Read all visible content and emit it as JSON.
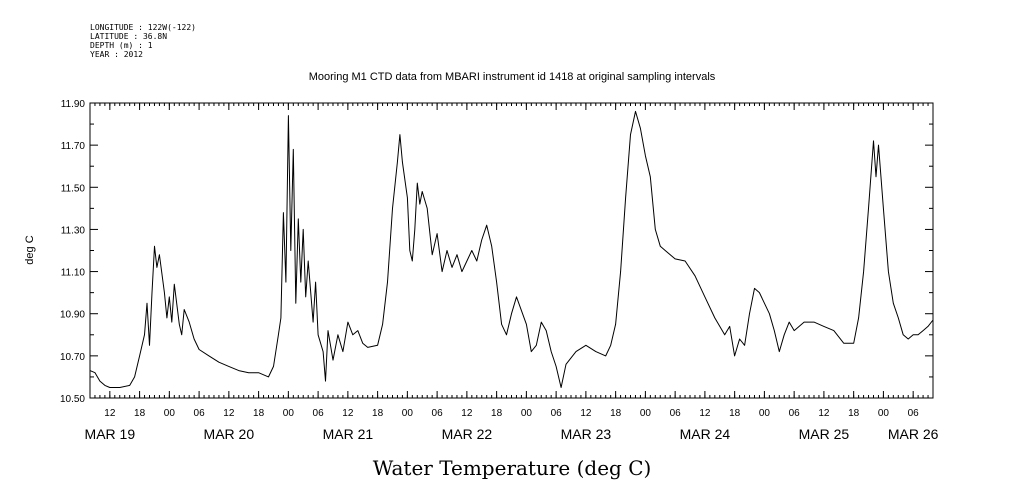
{
  "header": {
    "lines": [
      "LONGITUDE : 122W(-122)",
      "LATITUDE : 36.8N",
      "DEPTH (m) : 1",
      "YEAR : 2012"
    ]
  },
  "chart_data": {
    "type": "line",
    "title": "Mooring M1 CTD data from MBARI instrument id 1418 at original sampling intervals",
    "xlabel": "Water Temperature (deg C)",
    "ylabel": "deg C",
    "ylim": [
      10.5,
      11.9
    ],
    "xlim": [
      "2012-03-19T08:00",
      "2012-03-26T10:00"
    ],
    "y_ticks": [
      "10.50",
      "10.70",
      "10.90",
      "11.10",
      "11.30",
      "11.50",
      "11.70",
      "11.90"
    ],
    "x_hour_ticks": [
      {
        "t": "2012-03-19T12:00",
        "label": "12"
      },
      {
        "t": "2012-03-19T18:00",
        "label": "18"
      },
      {
        "t": "2012-03-20T00:00",
        "label": "00"
      },
      {
        "t": "2012-03-20T06:00",
        "label": "06"
      },
      {
        "t": "2012-03-20T12:00",
        "label": "12"
      },
      {
        "t": "2012-03-20T18:00",
        "label": "18"
      },
      {
        "t": "2012-03-21T00:00",
        "label": "00"
      },
      {
        "t": "2012-03-21T06:00",
        "label": "06"
      },
      {
        "t": "2012-03-21T12:00",
        "label": "12"
      },
      {
        "t": "2012-03-21T18:00",
        "label": "18"
      },
      {
        "t": "2012-03-22T00:00",
        "label": "00"
      },
      {
        "t": "2012-03-22T06:00",
        "label": "06"
      },
      {
        "t": "2012-03-22T12:00",
        "label": "12"
      },
      {
        "t": "2012-03-22T18:00",
        "label": "18"
      },
      {
        "t": "2012-03-23T00:00",
        "label": "00"
      },
      {
        "t": "2012-03-23T06:00",
        "label": "06"
      },
      {
        "t": "2012-03-23T12:00",
        "label": "12"
      },
      {
        "t": "2012-03-23T18:00",
        "label": "18"
      },
      {
        "t": "2012-03-24T00:00",
        "label": "00"
      },
      {
        "t": "2012-03-24T06:00",
        "label": "06"
      },
      {
        "t": "2012-03-24T12:00",
        "label": "12"
      },
      {
        "t": "2012-03-24T18:00",
        "label": "18"
      },
      {
        "t": "2012-03-25T00:00",
        "label": "00"
      },
      {
        "t": "2012-03-25T06:00",
        "label": "06"
      },
      {
        "t": "2012-03-25T12:00",
        "label": "12"
      },
      {
        "t": "2012-03-25T18:00",
        "label": "18"
      },
      {
        "t": "2012-03-26T00:00",
        "label": "00"
      },
      {
        "t": "2012-03-26T06:00",
        "label": "06"
      }
    ],
    "x_date_labels": [
      {
        "t": "2012-03-19T12:00",
        "label": "MAR 19"
      },
      {
        "t": "2012-03-20T12:00",
        "label": "MAR 20"
      },
      {
        "t": "2012-03-21T12:00",
        "label": "MAR 21"
      },
      {
        "t": "2012-03-22T12:00",
        "label": "MAR 22"
      },
      {
        "t": "2012-03-23T12:00",
        "label": "MAR 23"
      },
      {
        "t": "2012-03-24T12:00",
        "label": "MAR 24"
      },
      {
        "t": "2012-03-25T12:00",
        "label": "MAR 25"
      },
      {
        "t": "2012-03-26T06:00",
        "label": "MAR 26"
      }
    ],
    "grid": false,
    "line_color": "#000000",
    "series": [
      {
        "points": [
          [
            "2012-03-19T08:00",
            10.63
          ],
          [
            "2012-03-19T09:00",
            10.62
          ],
          [
            "2012-03-19T10:00",
            10.58
          ],
          [
            "2012-03-19T11:00",
            10.56
          ],
          [
            "2012-03-19T12:00",
            10.55
          ],
          [
            "2012-03-19T14:00",
            10.55
          ],
          [
            "2012-03-19T16:00",
            10.56
          ],
          [
            "2012-03-19T17:00",
            10.6
          ],
          [
            "2012-03-19T18:00",
            10.7
          ],
          [
            "2012-03-19T19:00",
            10.8
          ],
          [
            "2012-03-19T19:30",
            10.95
          ],
          [
            "2012-03-19T20:00",
            10.75
          ],
          [
            "2012-03-19T20:30",
            11.0
          ],
          [
            "2012-03-19T21:00",
            11.22
          ],
          [
            "2012-03-19T21:30",
            11.12
          ],
          [
            "2012-03-19T22:00",
            11.18
          ],
          [
            "2012-03-19T23:00",
            11.0
          ],
          [
            "2012-03-19T23:30",
            10.88
          ],
          [
            "2012-03-20T00:00",
            10.98
          ],
          [
            "2012-03-20T00:30",
            10.86
          ],
          [
            "2012-03-20T01:00",
            11.04
          ],
          [
            "2012-03-20T02:00",
            10.85
          ],
          [
            "2012-03-20T02:30",
            10.8
          ],
          [
            "2012-03-20T03:00",
            10.92
          ],
          [
            "2012-03-20T04:00",
            10.86
          ],
          [
            "2012-03-20T05:00",
            10.78
          ],
          [
            "2012-03-20T06:00",
            10.73
          ],
          [
            "2012-03-20T08:00",
            10.7
          ],
          [
            "2012-03-20T10:00",
            10.67
          ],
          [
            "2012-03-20T12:00",
            10.65
          ],
          [
            "2012-03-20T14:00",
            10.63
          ],
          [
            "2012-03-20T16:00",
            10.62
          ],
          [
            "2012-03-20T18:00",
            10.62
          ],
          [
            "2012-03-20T20:00",
            10.6
          ],
          [
            "2012-03-20T21:00",
            10.65
          ],
          [
            "2012-03-20T22:00",
            10.8
          ],
          [
            "2012-03-20T22:30",
            10.88
          ],
          [
            "2012-03-20T23:00",
            11.38
          ],
          [
            "2012-03-20T23:30",
            11.05
          ],
          [
            "2012-03-21T00:00",
            11.84
          ],
          [
            "2012-03-21T00:30",
            11.2
          ],
          [
            "2012-03-21T01:00",
            11.68
          ],
          [
            "2012-03-21T01:30",
            10.95
          ],
          [
            "2012-03-21T02:00",
            11.35
          ],
          [
            "2012-03-21T02:30",
            11.05
          ],
          [
            "2012-03-21T03:00",
            11.3
          ],
          [
            "2012-03-21T03:30",
            10.98
          ],
          [
            "2012-03-21T04:00",
            11.15
          ],
          [
            "2012-03-21T05:00",
            10.86
          ],
          [
            "2012-03-21T05:30",
            11.05
          ],
          [
            "2012-03-21T06:00",
            10.8
          ],
          [
            "2012-03-21T07:00",
            10.72
          ],
          [
            "2012-03-21T07:30",
            10.58
          ],
          [
            "2012-03-21T08:00",
            10.82
          ],
          [
            "2012-03-21T09:00",
            10.68
          ],
          [
            "2012-03-21T10:00",
            10.8
          ],
          [
            "2012-03-21T11:00",
            10.72
          ],
          [
            "2012-03-21T12:00",
            10.86
          ],
          [
            "2012-03-21T13:00",
            10.8
          ],
          [
            "2012-03-21T14:00",
            10.82
          ],
          [
            "2012-03-21T15:00",
            10.76
          ],
          [
            "2012-03-21T16:00",
            10.74
          ],
          [
            "2012-03-21T18:00",
            10.75
          ],
          [
            "2012-03-21T19:00",
            10.85
          ],
          [
            "2012-03-21T20:00",
            11.05
          ],
          [
            "2012-03-21T21:00",
            11.4
          ],
          [
            "2012-03-21T22:00",
            11.62
          ],
          [
            "2012-03-21T22:30",
            11.75
          ],
          [
            "2012-03-21T23:00",
            11.62
          ],
          [
            "2012-03-22T00:00",
            11.45
          ],
          [
            "2012-03-22T00:30",
            11.2
          ],
          [
            "2012-03-22T01:00",
            11.15
          ],
          [
            "2012-03-22T01:30",
            11.3
          ],
          [
            "2012-03-22T02:00",
            11.52
          ],
          [
            "2012-03-22T02:30",
            11.42
          ],
          [
            "2012-03-22T03:00",
            11.48
          ],
          [
            "2012-03-22T04:00",
            11.4
          ],
          [
            "2012-03-22T05:00",
            11.18
          ],
          [
            "2012-03-22T06:00",
            11.28
          ],
          [
            "2012-03-22T07:00",
            11.1
          ],
          [
            "2012-03-22T08:00",
            11.2
          ],
          [
            "2012-03-22T09:00",
            11.12
          ],
          [
            "2012-03-22T10:00",
            11.18
          ],
          [
            "2012-03-22T11:00",
            11.1
          ],
          [
            "2012-03-22T12:00",
            11.15
          ],
          [
            "2012-03-22T13:00",
            11.2
          ],
          [
            "2012-03-22T14:00",
            11.15
          ],
          [
            "2012-03-22T15:00",
            11.25
          ],
          [
            "2012-03-22T16:00",
            11.32
          ],
          [
            "2012-03-22T17:00",
            11.22
          ],
          [
            "2012-03-22T18:00",
            11.05
          ],
          [
            "2012-03-22T19:00",
            10.85
          ],
          [
            "2012-03-22T20:00",
            10.8
          ],
          [
            "2012-03-22T21:00",
            10.9
          ],
          [
            "2012-03-22T22:00",
            10.98
          ],
          [
            "2012-03-23T00:00",
            10.85
          ],
          [
            "2012-03-23T01:00",
            10.72
          ],
          [
            "2012-03-23T02:00",
            10.75
          ],
          [
            "2012-03-23T03:00",
            10.86
          ],
          [
            "2012-03-23T04:00",
            10.82
          ],
          [
            "2012-03-23T05:00",
            10.72
          ],
          [
            "2012-03-23T06:00",
            10.65
          ],
          [
            "2012-03-23T07:00",
            10.55
          ],
          [
            "2012-03-23T08:00",
            10.66
          ],
          [
            "2012-03-23T10:00",
            10.72
          ],
          [
            "2012-03-23T12:00",
            10.75
          ],
          [
            "2012-03-23T14:00",
            10.72
          ],
          [
            "2012-03-23T16:00",
            10.7
          ],
          [
            "2012-03-23T17:00",
            10.75
          ],
          [
            "2012-03-23T18:00",
            10.85
          ],
          [
            "2012-03-23T19:00",
            11.1
          ],
          [
            "2012-03-23T20:00",
            11.45
          ],
          [
            "2012-03-23T21:00",
            11.75
          ],
          [
            "2012-03-23T22:00",
            11.86
          ],
          [
            "2012-03-23T23:00",
            11.78
          ],
          [
            "2012-03-24T00:00",
            11.65
          ],
          [
            "2012-03-24T01:00",
            11.55
          ],
          [
            "2012-03-24T02:00",
            11.3
          ],
          [
            "2012-03-24T03:00",
            11.22
          ],
          [
            "2012-03-24T04:00",
            11.2
          ],
          [
            "2012-03-24T06:00",
            11.16
          ],
          [
            "2012-03-24T08:00",
            11.15
          ],
          [
            "2012-03-24T10:00",
            11.08
          ],
          [
            "2012-03-24T12:00",
            10.98
          ],
          [
            "2012-03-24T14:00",
            10.88
          ],
          [
            "2012-03-24T16:00",
            10.8
          ],
          [
            "2012-03-24T17:00",
            10.84
          ],
          [
            "2012-03-24T18:00",
            10.7
          ],
          [
            "2012-03-24T19:00",
            10.78
          ],
          [
            "2012-03-24T20:00",
            10.75
          ],
          [
            "2012-03-24T21:00",
            10.9
          ],
          [
            "2012-03-24T22:00",
            11.02
          ],
          [
            "2012-03-24T23:00",
            11.0
          ],
          [
            "2012-03-25T00:00",
            10.95
          ],
          [
            "2012-03-25T01:00",
            10.9
          ],
          [
            "2012-03-25T02:00",
            10.82
          ],
          [
            "2012-03-25T03:00",
            10.72
          ],
          [
            "2012-03-25T04:00",
            10.8
          ],
          [
            "2012-03-25T05:00",
            10.86
          ],
          [
            "2012-03-25T06:00",
            10.82
          ],
          [
            "2012-03-25T08:00",
            10.86
          ],
          [
            "2012-03-25T10:00",
            10.86
          ],
          [
            "2012-03-25T12:00",
            10.84
          ],
          [
            "2012-03-25T14:00",
            10.82
          ],
          [
            "2012-03-25T16:00",
            10.76
          ],
          [
            "2012-03-25T18:00",
            10.76
          ],
          [
            "2012-03-25T19:00",
            10.88
          ],
          [
            "2012-03-25T20:00",
            11.1
          ],
          [
            "2012-03-25T21:00",
            11.4
          ],
          [
            "2012-03-25T22:00",
            11.72
          ],
          [
            "2012-03-25T22:30",
            11.55
          ],
          [
            "2012-03-25T23:00",
            11.7
          ],
          [
            "2012-03-26T00:00",
            11.4
          ],
          [
            "2012-03-26T01:00",
            11.1
          ],
          [
            "2012-03-26T02:00",
            10.95
          ],
          [
            "2012-03-26T03:00",
            10.88
          ],
          [
            "2012-03-26T04:00",
            10.8
          ],
          [
            "2012-03-26T05:00",
            10.78
          ],
          [
            "2012-03-26T06:00",
            10.8
          ],
          [
            "2012-03-26T07:00",
            10.8
          ],
          [
            "2012-03-26T08:00",
            10.82
          ],
          [
            "2012-03-26T09:00",
            10.84
          ],
          [
            "2012-03-26T10:00",
            10.87
          ]
        ]
      }
    ]
  }
}
